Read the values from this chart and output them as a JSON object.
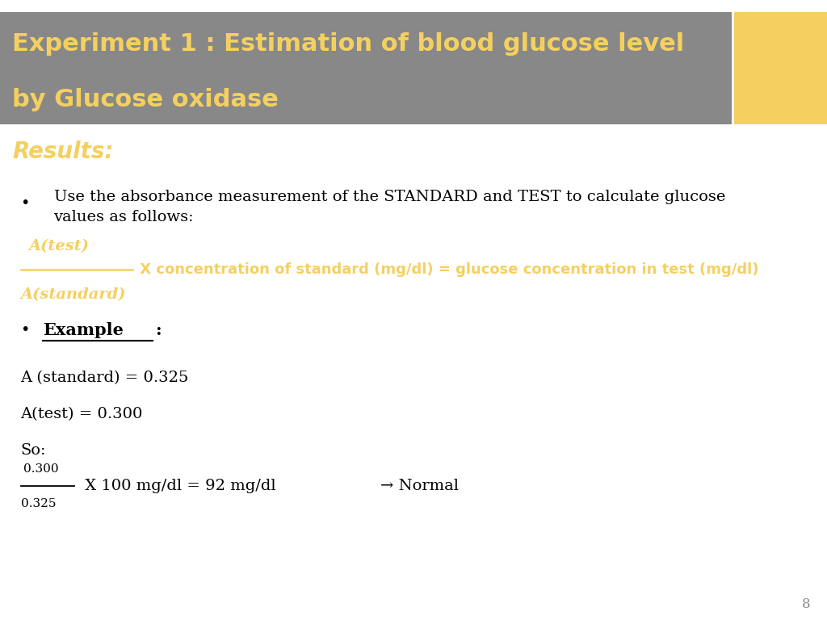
{
  "title_line1": "Experiment 1 : Estimation of blood glucose level",
  "title_line2": "by Glucose oxidase",
  "title_bg_color": "#888888",
  "title_text_color": "#F5D060",
  "yellow_box_color": "#F5D060",
  "results_label": "Results:",
  "results_color": "#F5D060",
  "bullet_text_line1": "Use the absorbance measurement of the STANDARD and TEST to calculate glucose",
  "bullet_text_line2": "values as follows:",
  "bullet_text_color": "#000000",
  "formula_color": "#F5D060",
  "formula_numerator": "A(test)",
  "formula_denominator": "A(standard)",
  "formula_rest": " X concentration of standard (mg/dl) = glucose concentration in test (mg/dl)",
  "example_label": "Example",
  "example_text_color": "#000000",
  "body_line1": "A (standard) = 0.325",
  "body_line2": "A(test) = 0.300",
  "body_line3": "So:",
  "bottom_fraction_num": "0.300",
  "bottom_fraction_den": "0.325",
  "bottom_formula_rest": " X 100 mg/dl = 92 mg/dl",
  "arrow_text": "→ Normal",
  "page_number": "8",
  "bg_color": "#FFFFFF"
}
